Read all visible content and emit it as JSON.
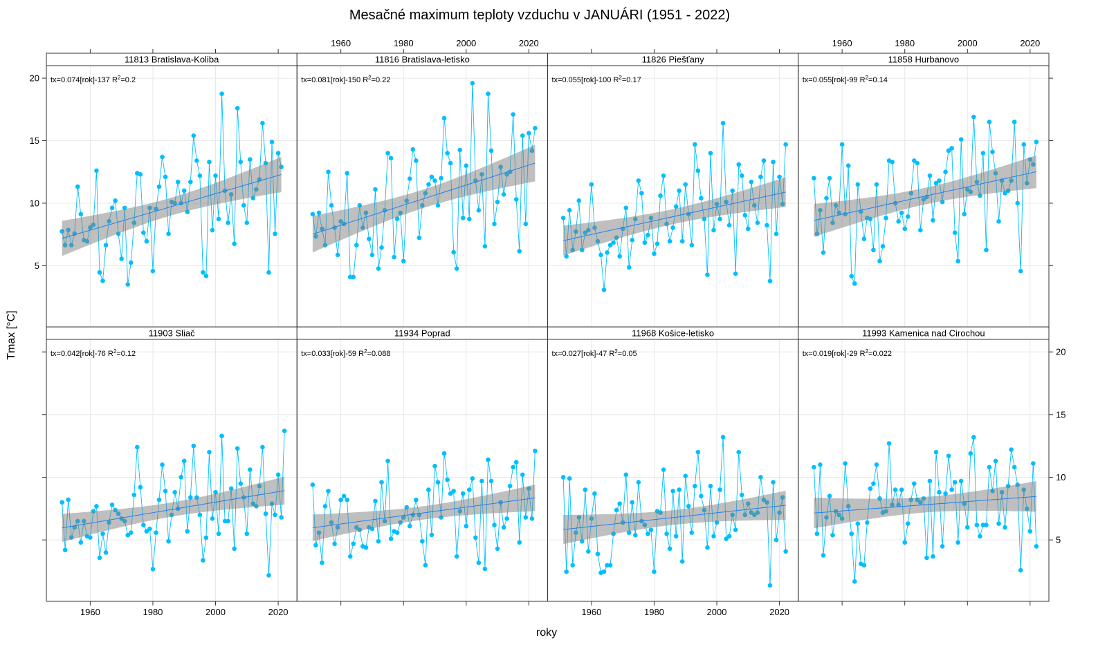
{
  "chart_data": {
    "type": "line",
    "title": "Mesačné maximum teploty vzduchu v JANUÁRI (1951 - 2022)",
    "xlabel": "roky",
    "ylabel": "Tmax [°C]",
    "xlim": [
      1946,
      2026
    ],
    "ylim": [
      0.1,
      21.0
    ],
    "xticks": [
      1960,
      1980,
      2000,
      2020
    ],
    "yticks": [
      5,
      10,
      15,
      20
    ],
    "grid": true,
    "layout": "4 columns x 2 rows",
    "colors": {
      "points": "#00bfff",
      "point_line": "#00bfff",
      "trend": "#1e7ff0",
      "band": "#808080"
    },
    "x": [
      1951,
      1952,
      1953,
      1954,
      1955,
      1956,
      1957,
      1958,
      1959,
      1960,
      1961,
      1962,
      1963,
      1964,
      1965,
      1966,
      1967,
      1968,
      1969,
      1970,
      1971,
      1972,
      1973,
      1974,
      1975,
      1976,
      1977,
      1978,
      1979,
      1980,
      1981,
      1982,
      1983,
      1984,
      1985,
      1986,
      1987,
      1988,
      1989,
      1990,
      1991,
      1992,
      1993,
      1994,
      1995,
      1996,
      1997,
      1998,
      1999,
      2000,
      2001,
      2002,
      2003,
      2004,
      2005,
      2006,
      2007,
      2008,
      2009,
      2010,
      2011,
      2012,
      2013,
      2014,
      2015,
      2016,
      2017,
      2018,
      2019,
      2020,
      2021,
      2022
    ],
    "panels": [
      {
        "name": "11813 Bratislava-Koliba",
        "equation": "tx=0.074[rok]-137",
        "r2": "0.2",
        "values": [
          7.75,
          6.64,
          7.86,
          6.64,
          7.57,
          11.32,
          9.12,
          7.05,
          6.95,
          8.05,
          8.27,
          12.6,
          4.46,
          3.79,
          6.64,
          8.55,
          9.62,
          10.2,
          7.55,
          5.55,
          9.62,
          3.5,
          5.25,
          8.43,
          12.4,
          12.3,
          7.64,
          6.95,
          9.62,
          4.57,
          9.54,
          11.32,
          13.7,
          12.1,
          7.55,
          10.1,
          10.0,
          11.7,
          10.0,
          11.0,
          9.3,
          11.7,
          15.4,
          13.4,
          12.2,
          4.46,
          4.18,
          13.3,
          7.84,
          12.2,
          8.73,
          18.75,
          11.0,
          8.43,
          10.7,
          6.75,
          17.6,
          13.3,
          9.82,
          8.43,
          13.5,
          10.4,
          11.1,
          11.9,
          16.4,
          13.2,
          4.46,
          14.9,
          7.55,
          14.0,
          12.9,
          null
        ]
      },
      {
        "name": "11816 Bratislava-letisko",
        "equation": "tx=0.081[rok]-150",
        "r2": "0.22",
        "values": [
          9.12,
          7.34,
          9.23,
          7.95,
          6.64,
          12.5,
          9.82,
          8.04,
          5.86,
          8.54,
          8.34,
          12.4,
          4.09,
          4.09,
          6.64,
          9.82,
          8.04,
          9.23,
          7.14,
          5.86,
          11.1,
          4.77,
          6.45,
          9.43,
          14.0,
          13.6,
          5.68,
          8.75,
          9.23,
          5.36,
          10.2,
          11.96,
          14.3,
          13.4,
          7.23,
          9.82,
          10.8,
          11.5,
          12.1,
          11.8,
          9.82,
          12.0,
          16.8,
          14.0,
          13.2,
          6.07,
          4.77,
          14.25,
          8.82,
          13.0,
          8.73,
          19.6,
          11.8,
          9.43,
          12.3,
          6.55,
          18.75,
          14.2,
          8.34,
          10.1,
          12.9,
          10.7,
          12.3,
          12.5,
          17.1,
          10.3,
          6.16,
          15.4,
          8.34,
          15.6,
          14.2,
          16.0
        ]
      },
      {
        "name": "11826 Piešťany",
        "equation": "tx=0.055[rok]-100",
        "r2": "0.17",
        "values": [
          8.82,
          5.75,
          9.43,
          6.25,
          7.73,
          10.2,
          6.25,
          7.64,
          7.84,
          11.5,
          8.04,
          6.95,
          5.86,
          3.07,
          6.05,
          6.64,
          6.84,
          7.25,
          5.75,
          7.95,
          9.62,
          4.86,
          7.05,
          8.73,
          11.8,
          10.8,
          6.84,
          7.45,
          8.82,
          5.96,
          6.75,
          10.6,
          12.2,
          8.34,
          6.95,
          8.04,
          9.73,
          11.0,
          6.95,
          11.5,
          9.12,
          6.64,
          14.7,
          12.6,
          10.4,
          8.73,
          4.27,
          14.0,
          7.84,
          9.93,
          8.73,
          16.4,
          10.1,
          8.23,
          11.0,
          4.36,
          13.1,
          12.2,
          9.04,
          7.95,
          11.7,
          9.82,
          8.43,
          12.1,
          13.4,
          8.23,
          3.77,
          13.3,
          7.54,
          12.1,
          9.93,
          14.7
        ]
      },
      {
        "name": "11858 Hurbanovo",
        "equation": "tx=0.055[rok]-99",
        "r2": "0.14",
        "values": [
          12.0,
          7.54,
          9.43,
          6.05,
          10.4,
          12.0,
          8.43,
          9.82,
          9.23,
          14.7,
          9.12,
          13.0,
          4.16,
          3.57,
          11.5,
          9.32,
          7.14,
          8.82,
          8.73,
          6.25,
          11.5,
          5.36,
          6.55,
          8.82,
          13.4,
          13.3,
          10.0,
          8.54,
          9.23,
          7.95,
          8.93,
          10.8,
          13.4,
          13.2,
          7.84,
          10.3,
          10.5,
          12.2,
          8.63,
          11.6,
          11.8,
          10.1,
          12.5,
          14.2,
          14.4,
          7.64,
          5.36,
          15.1,
          9.12,
          11.1,
          10.9,
          16.9,
          11.7,
          10.6,
          14.0,
          6.25,
          16.5,
          14.1,
          12.4,
          8.54,
          11.8,
          10.8,
          11.0,
          11.8,
          16.5,
          10.0,
          4.57,
          14.7,
          11.6,
          13.5,
          13.1,
          14.9
        ]
      },
      {
        "name": "11903 Sliač",
        "equation": "tx=0.042[rok]-76",
        "r2": "0.12",
        "values": [
          8.0,
          4.19,
          8.21,
          5.2,
          6.0,
          6.5,
          4.8,
          6.5,
          5.29,
          5.2,
          7.29,
          7.69,
          3.57,
          5.49,
          3.99,
          6.39,
          7.8,
          7.38,
          7.09,
          6.7,
          6.5,
          5.38,
          5.58,
          8.59,
          12.4,
          9.2,
          6.19,
          5.69,
          5.88,
          2.67,
          5.58,
          8.2,
          11.0,
          8.9,
          4.89,
          7.0,
          8.8,
          7.49,
          10.0,
          11.3,
          5.69,
          8.39,
          12.5,
          8.39,
          7.0,
          3.38,
          5.18,
          12.0,
          6.7,
          8.8,
          5.49,
          13.3,
          6.5,
          6.5,
          9.1,
          4.3,
          12.3,
          9.49,
          8.39,
          5.49,
          10.6,
          7.89,
          7.69,
          9.3,
          12.4,
          7.09,
          2.18,
          7.89,
          7.0,
          10.2,
          6.8,
          13.7
        ]
      },
      {
        "name": "11934 Poprad",
        "equation": "tx=0.033[rok]-59",
        "r2": "0.088",
        "values": [
          9.4,
          4.58,
          5.58,
          3.18,
          7.69,
          8.9,
          6.39,
          4.69,
          6.0,
          8.2,
          8.5,
          8.2,
          3.68,
          4.69,
          6.0,
          5.8,
          4.49,
          4.39,
          6.0,
          5.88,
          8.1,
          4.89,
          9.6,
          6.5,
          11.3,
          5.09,
          5.69,
          5.58,
          6.39,
          6.8,
          7.6,
          6.1,
          7.0,
          8.2,
          7.0,
          4.89,
          2.98,
          9.0,
          5.4,
          10.9,
          9.6,
          6.8,
          11.9,
          9.8,
          8.7,
          8.9,
          3.68,
          7.29,
          8.7,
          6.1,
          9.0,
          9.9,
          5.18,
          3.18,
          9.7,
          2.69,
          11.4,
          9.7,
          6.19,
          4.3,
          8.0,
          6.0,
          6.7,
          9.3,
          10.8,
          11.2,
          4.8,
          10.2,
          6.8,
          9.1,
          6.7,
          12.1
        ]
      },
      {
        "name": "11968 Košice-letisko",
        "equation": "tx=0.027[rok]-47",
        "r2": "0.05",
        "values": [
          10.0,
          2.47,
          9.9,
          2.98,
          5.58,
          6.8,
          4.89,
          9.0,
          4.08,
          6.7,
          8.7,
          3.88,
          2.38,
          2.47,
          2.98,
          2.98,
          5.49,
          7.38,
          7.89,
          6.39,
          10.2,
          5.58,
          8.0,
          5.38,
          9.6,
          6.5,
          6.19,
          5.49,
          5.8,
          2.47,
          7.29,
          7.18,
          10.6,
          5.49,
          4.3,
          8.9,
          5.29,
          9.0,
          3.28,
          10.1,
          7.69,
          5.58,
          9.3,
          12.0,
          8.5,
          7.38,
          4.39,
          9.3,
          5.29,
          6.39,
          9.0,
          13.2,
          5.09,
          5.29,
          7.0,
          5.8,
          12.0,
          8.59,
          7.0,
          7.89,
          7.18,
          7.0,
          7.18,
          10.0,
          8.2,
          8.0,
          1.37,
          9.6,
          5.0,
          7.18,
          8.39,
          4.08
        ]
      },
      {
        "name": "11993 Kamenica nad Cirochou",
        "equation": "tx=0.019[rok]-29",
        "r2": "0.022",
        "values": [
          10.8,
          5.49,
          11.0,
          3.77,
          6.8,
          8.5,
          5.38,
          7.29,
          7.0,
          6.7,
          11.1,
          7.69,
          5.49,
          1.68,
          6.3,
          3.09,
          2.98,
          6.39,
          9.1,
          9.49,
          11.0,
          8.3,
          7.18,
          7.29,
          12.7,
          7.8,
          9.0,
          7.8,
          9.0,
          4.8,
          6.3,
          8.2,
          9.49,
          8.2,
          8.0,
          8.3,
          3.57,
          9.7,
          3.68,
          12.0,
          8.8,
          4.49,
          8.7,
          11.7,
          9.0,
          9.6,
          4.8,
          9.7,
          7.89,
          6.0,
          11.9,
          13.2,
          6.19,
          5.29,
          6.19,
          6.19,
          10.8,
          8.9,
          11.3,
          6.3,
          8.8,
          6.0,
          9.3,
          12.2,
          10.8,
          9.4,
          2.58,
          9.0,
          7.49,
          5.69,
          11.1,
          4.49
        ]
      }
    ]
  }
}
